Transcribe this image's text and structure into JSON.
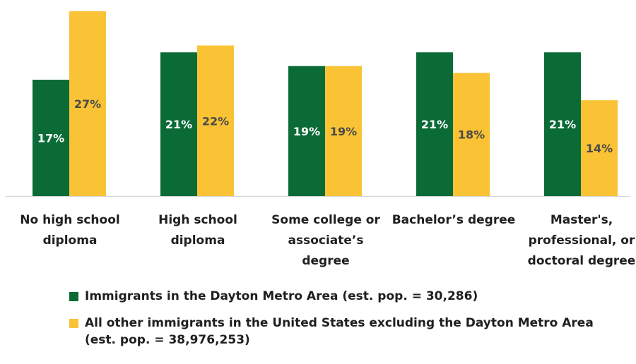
{
  "chart_data": {
    "type": "bar",
    "categories": [
      [
        "No high school",
        "diploma"
      ],
      [
        "High school",
        "diploma"
      ],
      [
        "Some college or",
        "associate’s",
        "degree"
      ],
      [
        "Bachelor’s degree"
      ],
      [
        "Master's,",
        "professional, or",
        "doctoral degree"
      ]
    ],
    "series": [
      {
        "name": "Immigrants in the Dayton Metro Area (est. pop. = 30,286)",
        "values": [
          17,
          21,
          19,
          21,
          21
        ],
        "labels": [
          "17%",
          "21%",
          "19%",
          "21%",
          "21%"
        ],
        "color": "#0b6b37"
      },
      {
        "name": "All other immigrants in the United States excluding the Dayton Metro Area (est. pop. = 38,976,253)",
        "values": [
          27,
          22,
          19,
          18,
          14
        ],
        "labels": [
          "27%",
          "22%",
          "19%",
          "18%",
          "14%"
        ],
        "color": "#f9c335"
      }
    ],
    "ylim": [
      0,
      30
    ],
    "grid": false,
    "legend_position": "bottom"
  },
  "legend": {
    "items": [
      {
        "label": "Immigrants in the Dayton Metro Area (est. pop. = 30,286)",
        "color": "#0b6b37"
      },
      {
        "label": "All other immigrants in the United States excluding the Dayton Metro Area (est. pop. = 38,976,253)",
        "color": "#f9c335"
      }
    ]
  },
  "colors": {
    "axis": "#d9d9d9",
    "label_on_green": "#ffffff",
    "label_on_yellow": "#4a4a4a",
    "text": "#1f1f1f"
  }
}
